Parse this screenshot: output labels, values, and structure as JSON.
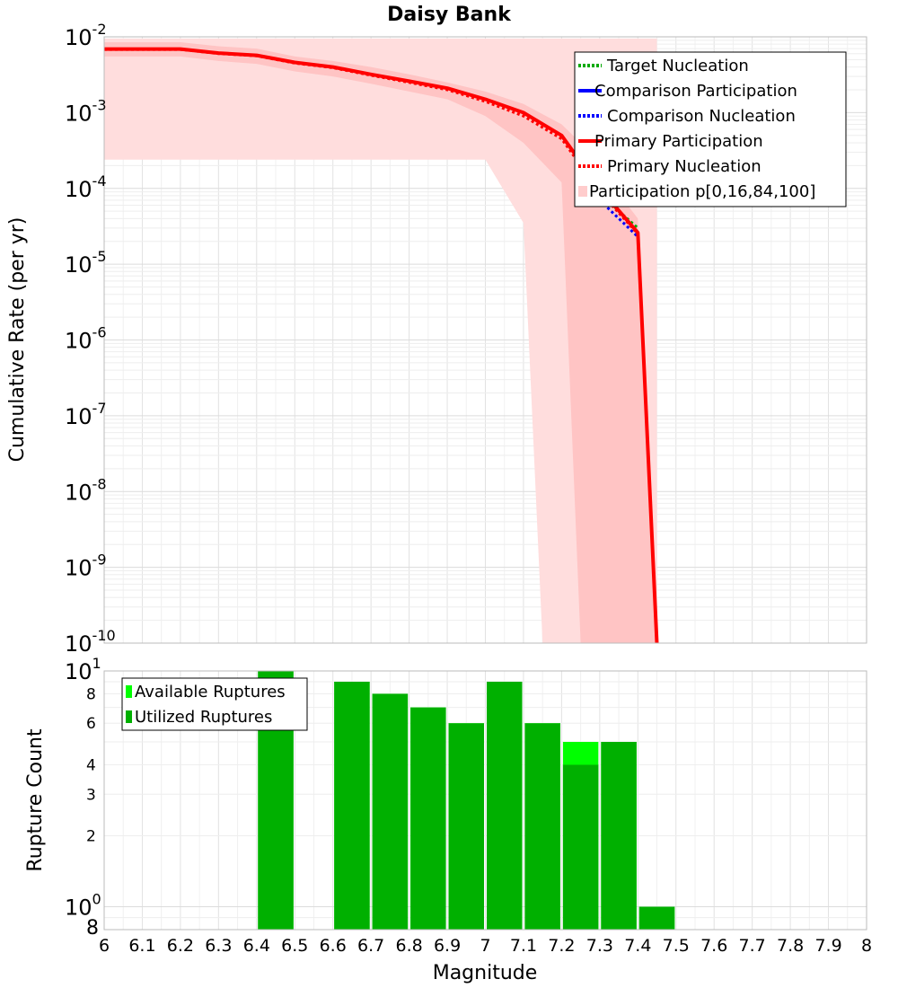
{
  "title": "Daisy Bank",
  "chart_data": [
    {
      "id": "rate",
      "type": "line",
      "title": "Daisy Bank",
      "ylabel": "Cumulative Rate (per yr)",
      "xlabel": "",
      "y_scale": "log",
      "xlim": [
        6,
        8
      ],
      "ylim": [
        1e-10,
        0.01
      ],
      "y_ticks": [
        {
          "value": 0.01,
          "base": "10",
          "exp": "-2"
        },
        {
          "value": 0.001,
          "base": "10",
          "exp": "-3"
        },
        {
          "value": 0.0001,
          "base": "10",
          "exp": "-4"
        },
        {
          "value": 1e-05,
          "base": "10",
          "exp": "-5"
        },
        {
          "value": 1e-06,
          "base": "10",
          "exp": "-6"
        },
        {
          "value": 1e-07,
          "base": "10",
          "exp": "-7"
        },
        {
          "value": 1e-08,
          "base": "10",
          "exp": "-8"
        },
        {
          "value": 1e-09,
          "base": "10",
          "exp": "-9"
        },
        {
          "value": 1e-10,
          "base": "10",
          "exp": "-10"
        }
      ],
      "grid": true,
      "legend_position": "top-right",
      "legend": [
        {
          "label": "Target Nucleation",
          "color": "#00aa00",
          "style": "dotted"
        },
        {
          "label": "Comparison Participation",
          "color": "#0000ff",
          "style": "solid"
        },
        {
          "label": "Comparison Nucleation",
          "color": "#0000ff",
          "style": "dotted"
        },
        {
          "label": "Primary Participation",
          "color": "#ff0000",
          "style": "solid"
        },
        {
          "label": "Primary Nucleation",
          "color": "#ff0000",
          "style": "dotted"
        },
        {
          "label": "Participation p[0,16,84,100]",
          "color": "#ffcccc",
          "style": "band"
        }
      ],
      "bands": [
        {
          "name": "p0-p100",
          "color": "#ffdddd",
          "x": [
            6.0,
            6.3,
            6.4,
            6.5,
            6.6,
            6.7,
            6.8,
            6.9,
            7.0,
            7.1,
            7.15,
            7.2,
            7.25,
            7.3,
            7.4,
            7.45
          ],
          "upper": [
            0.0095,
            0.0095,
            0.0095,
            0.0095,
            0.0095,
            0.0095,
            0.0095,
            0.0095,
            0.0095,
            0.0095,
            0.0095,
            0.0095,
            0.0095,
            0.0095,
            0.0095,
            0.0095
          ],
          "lower": [
            0.00024,
            0.00024,
            0.00024,
            0.00024,
            0.00024,
            0.00024,
            0.00024,
            0.00024,
            0.00024,
            3.5e-05,
            1e-10,
            1e-10,
            1e-10,
            1e-10,
            1e-10,
            1e-10
          ]
        },
        {
          "name": "p16-p84",
          "color": "#ffc4c4",
          "x": [
            6.0,
            6.2,
            6.3,
            6.4,
            6.5,
            6.6,
            6.7,
            6.8,
            6.9,
            7.0,
            7.1,
            7.2,
            7.25,
            7.3,
            7.4,
            7.45
          ],
          "upper": [
            0.0085,
            0.0085,
            0.0075,
            0.007,
            0.0055,
            0.0048,
            0.004,
            0.0032,
            0.0025,
            0.0019,
            0.0013,
            0.0007,
            0.0004,
            0.00018,
            4e-05,
            1e-10
          ],
          "lower": [
            0.0055,
            0.0055,
            0.0048,
            0.0044,
            0.0035,
            0.003,
            0.0024,
            0.0019,
            0.0015,
            0.0009,
            0.0004,
            0.00012,
            1e-10,
            1e-10,
            1e-10,
            1e-10
          ]
        }
      ],
      "series": [
        {
          "name": "Target Nucleation",
          "color": "#00aa00",
          "style": "dotted",
          "x": [
            7.3,
            7.35,
            7.4
          ],
          "y": [
            9e-05,
            5e-05,
            3e-05
          ]
        },
        {
          "name": "Comparison Nucleation",
          "color": "#0000ff",
          "style": "dotted",
          "x": [
            7.3,
            7.35,
            7.4
          ],
          "y": [
            7e-05,
            4e-05,
            2.3e-05
          ]
        },
        {
          "name": "Primary Nucleation",
          "color": "#ff0000",
          "style": "dotted",
          "x": [
            6.0,
            6.2,
            6.3,
            6.4,
            6.5,
            6.6,
            6.7,
            6.8,
            6.9,
            7.0,
            7.1,
            7.2,
            7.3,
            7.4,
            7.45
          ],
          "y": [
            0.0068,
            0.0068,
            0.006,
            0.0056,
            0.0045,
            0.0039,
            0.0031,
            0.0025,
            0.002,
            0.0014,
            0.0009,
            0.00045,
            9e-05,
            2.5e-05,
            1e-10
          ]
        },
        {
          "name": "Primary Participation",
          "color": "#ff0000",
          "style": "solid",
          "x": [
            6.0,
            6.2,
            6.3,
            6.4,
            6.5,
            6.6,
            6.7,
            6.8,
            6.9,
            7.0,
            7.1,
            7.2,
            7.3,
            7.4,
            7.45
          ],
          "y": [
            0.0069,
            0.0069,
            0.0061,
            0.0057,
            0.0046,
            0.004,
            0.0032,
            0.0026,
            0.0021,
            0.0015,
            0.001,
            0.0005,
            0.0001,
            2.6e-05,
            1e-10
          ]
        }
      ]
    },
    {
      "id": "count",
      "type": "bar",
      "ylabel": "Rupture Count",
      "xlabel": "Magnitude",
      "y_scale": "log",
      "xlim": [
        6,
        8
      ],
      "ylim": [
        0.8,
        10
      ],
      "x_ticks": [
        "6",
        "6.1",
        "6.2",
        "6.3",
        "6.4",
        "6.5",
        "6.6",
        "6.7",
        "6.8",
        "6.9",
        "7",
        "7.1",
        "7.2",
        "7.3",
        "7.4",
        "7.5",
        "7.6",
        "7.7",
        "7.8",
        "7.9",
        "8"
      ],
      "y_ticks": [
        {
          "value": 10,
          "label": "10",
          "exp": "1"
        },
        {
          "value": 8,
          "label": "8",
          "exp": ""
        },
        {
          "value": 6,
          "label": "6",
          "exp": ""
        },
        {
          "value": 4,
          "label": "4",
          "exp": ""
        },
        {
          "value": 3,
          "label": "3",
          "exp": ""
        },
        {
          "value": 2,
          "label": "2",
          "exp": ""
        },
        {
          "value": 1,
          "label": "10",
          "exp": "0"
        },
        {
          "value": 0.8,
          "label": "8",
          "exp": ""
        }
      ],
      "grid": true,
      "legend_position": "top-left",
      "legend": [
        {
          "label": "Available Ruptures",
          "color": "#00ff00"
        },
        {
          "label": "Utilized Ruptures",
          "color": "#00b000"
        }
      ],
      "bin_width": 0.1,
      "bins": [
        {
          "x": 6.45,
          "available": 10,
          "utilized": 10
        },
        {
          "x": 6.65,
          "available": 9,
          "utilized": 9
        },
        {
          "x": 6.75,
          "available": 8,
          "utilized": 8
        },
        {
          "x": 6.85,
          "available": 7,
          "utilized": 7
        },
        {
          "x": 6.95,
          "available": 6,
          "utilized": 6
        },
        {
          "x": 7.05,
          "available": 9,
          "utilized": 9
        },
        {
          "x": 7.15,
          "available": 6,
          "utilized": 6
        },
        {
          "x": 7.25,
          "available": 5,
          "utilized": 4
        },
        {
          "x": 7.35,
          "available": 5,
          "utilized": 5
        },
        {
          "x": 7.45,
          "available": 1,
          "utilized": 1
        }
      ]
    }
  ]
}
